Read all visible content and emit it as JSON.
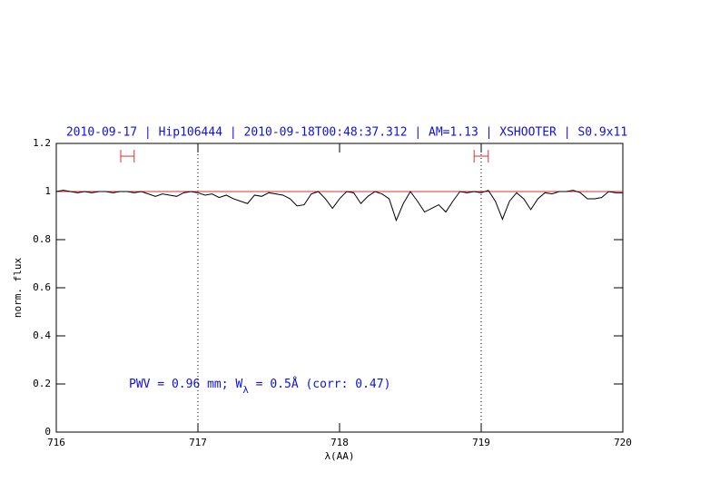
{
  "chart_data": {
    "type": "line",
    "title": "2010-09-17 | Hip106444 | 2010-09-18T00:48:37.312 | AM=1.13 | XSHOOTER | S0.9x11",
    "xlabel": "λ(AA)",
    "ylabel": "norm. flux",
    "annotation": [
      "PWV = 0.96 mm; W",
      "λ",
      " = 0.5Å (corr: 0.47)"
    ],
    "xlim": [
      716,
      720
    ],
    "ylim": [
      0,
      1.2
    ],
    "xticks": [
      716,
      717,
      718,
      719,
      720
    ],
    "yticks": [
      0,
      0.2,
      0.4,
      0.6,
      0.8,
      1,
      1.2
    ],
    "vlines": [
      717,
      719
    ],
    "reference_line": {
      "value": 1,
      "color": "#e03030"
    },
    "ranges": [
      {
        "x": [
          716.455,
          716.55
        ],
        "y": 1.147,
        "color": "#e03030"
      },
      {
        "x": [
          718.95,
          719.05
        ],
        "y": 1.147,
        "color": "#e03030"
      }
    ],
    "x": [
      716.0,
      716.05,
      716.1,
      716.15,
      716.2,
      716.25,
      716.3,
      716.35,
      716.4,
      716.45,
      716.5,
      716.55,
      716.6,
      716.65,
      716.7,
      716.75,
      716.8,
      716.85,
      716.9,
      716.95,
      717.0,
      717.05,
      717.1,
      717.15,
      717.2,
      717.25,
      717.3,
      717.35,
      717.4,
      717.45,
      717.5,
      717.55,
      717.6,
      717.65,
      717.7,
      717.75,
      717.8,
      717.85,
      717.9,
      717.95,
      718.0,
      718.05,
      718.1,
      718.15,
      718.2,
      718.25,
      718.3,
      718.35,
      718.4,
      718.45,
      718.5,
      718.55,
      718.6,
      718.65,
      718.7,
      718.75,
      718.8,
      718.85,
      718.9,
      718.95,
      719.0,
      719.05,
      719.1,
      719.15,
      719.2,
      719.25,
      719.3,
      719.35,
      719.4,
      719.45,
      719.5,
      719.55,
      719.6,
      719.65,
      719.7,
      719.75,
      719.8,
      719.85,
      719.9,
      719.95,
      720.0
    ],
    "series": [
      {
        "color": "#000000",
        "values": [
          1.0,
          1.005,
          1.0,
          0.995,
          1.0,
          0.995,
          1.0,
          1.0,
          0.995,
          1.0,
          1.0,
          0.995,
          1.0,
          0.99,
          0.98,
          0.99,
          0.985,
          0.98,
          0.995,
          1.0,
          0.995,
          0.985,
          0.99,
          0.975,
          0.985,
          0.97,
          0.96,
          0.95,
          0.985,
          0.98,
          0.995,
          0.99,
          0.985,
          0.97,
          0.94,
          0.945,
          0.99,
          1.0,
          0.97,
          0.93,
          0.97,
          1.0,
          0.995,
          0.95,
          0.98,
          1.0,
          0.99,
          0.97,
          0.88,
          0.95,
          1.0,
          0.96,
          0.915,
          0.93,
          0.945,
          0.915,
          0.96,
          1.0,
          0.995,
          1.0,
          0.995,
          1.005,
          0.96,
          0.885,
          0.96,
          0.995,
          0.97,
          0.925,
          0.97,
          0.995,
          0.99,
          1.0,
          1.0,
          1.005,
          0.995,
          0.97,
          0.97,
          0.975,
          1.0,
          0.995,
          0.995
        ]
      }
    ]
  }
}
